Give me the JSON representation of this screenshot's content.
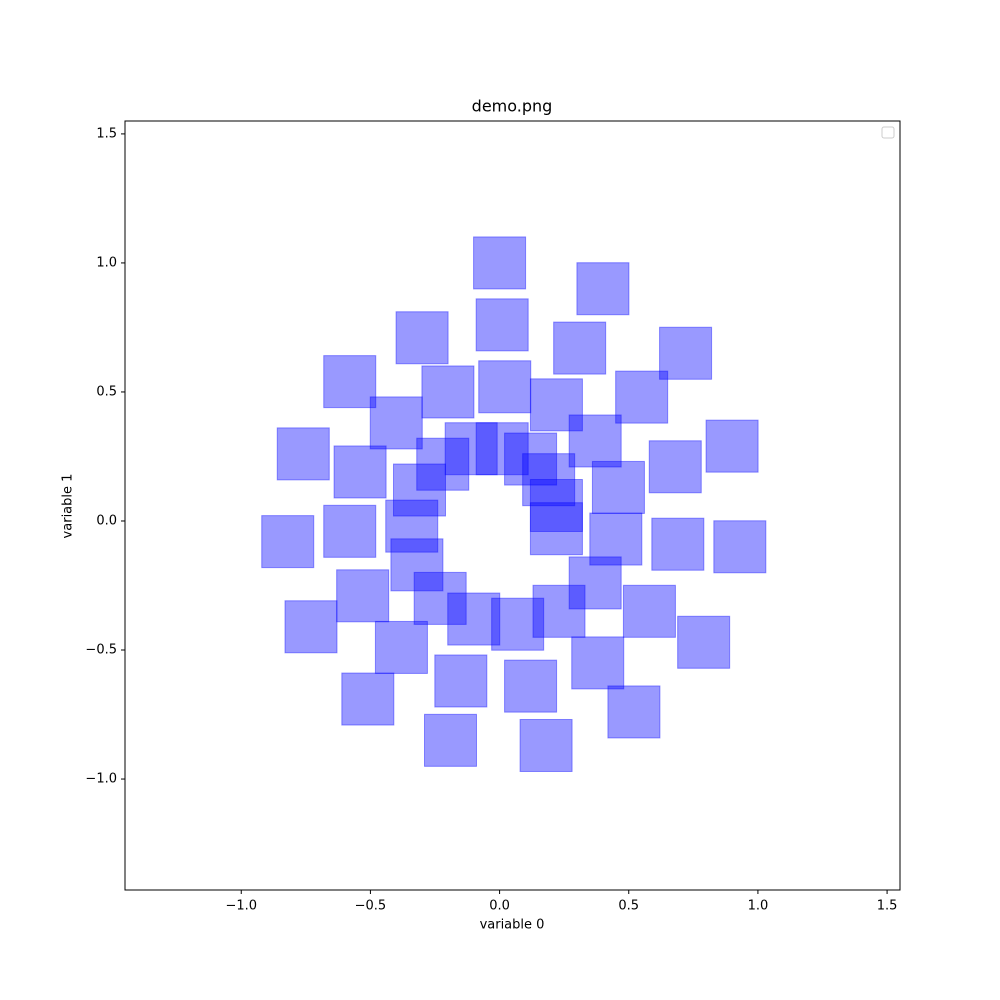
{
  "chart_data": {
    "type": "scatter",
    "title": "demo.png",
    "x_label": "variable 0",
    "y_label": "variable 1",
    "marker": "square",
    "color": "#0000ff",
    "alpha": 0.4,
    "xlim": [
      -1.45,
      1.55
    ],
    "ylim": [
      -1.43,
      1.55
    ],
    "xticks": [
      {
        "value": -1,
        "label": "−1.0"
      },
      {
        "value": -0.5,
        "label": "−0.5"
      },
      {
        "value": 0,
        "label": "0.0"
      },
      0.5,
      {
        "value": 1,
        "label": "1.0"
      },
      1.5
    ],
    "yticks": [
      {
        "value": -1,
        "label": "−1.0"
      },
      {
        "value": -0.5,
        "label": "−0.5"
      },
      {
        "value": 0,
        "label": "0.0"
      },
      0.5,
      {
        "value": 1,
        "label": "1.0"
      },
      1.5
    ],
    "x": [
      0.0,
      0.4,
      0.01,
      -0.3,
      0.31,
      0.72,
      -0.58,
      -0.2,
      0.02,
      0.22,
      0.55,
      -0.4,
      -0.76,
      0.37,
      0.9,
      -0.11,
      -0.22,
      0.01,
      0.12,
      -0.54,
      0.68,
      0.19,
      -0.31,
      0.46,
      0.22,
      -0.34,
      -0.58,
      -0.82,
      0.22,
      0.45,
      0.69,
      0.93,
      -0.32,
      -0.53,
      0.37,
      -0.23,
      0.58,
      0.23,
      -0.1,
      0.07,
      -0.73,
      0.79,
      -0.38,
      0.38,
      -0.15,
      0.12,
      -0.51,
      0.52,
      -0.19,
      0.18
    ],
    "y": [
      1.0,
      0.9,
      0.76,
      0.71,
      0.67,
      0.65,
      0.54,
      0.5,
      0.52,
      0.45,
      0.48,
      0.38,
      0.26,
      0.31,
      0.29,
      0.28,
      0.22,
      0.28,
      0.24,
      0.19,
      0.21,
      0.16,
      0.12,
      0.13,
      0.06,
      -0.02,
      -0.04,
      -0.08,
      -0.03,
      -0.07,
      -0.09,
      -0.1,
      -0.17,
      -0.29,
      -0.24,
      -0.3,
      -0.35,
      -0.35,
      -0.38,
      -0.4,
      -0.41,
      -0.47,
      -0.49,
      -0.55,
      -0.62,
      -0.64,
      -0.69,
      -0.74,
      -0.85,
      -0.87
    ]
  }
}
